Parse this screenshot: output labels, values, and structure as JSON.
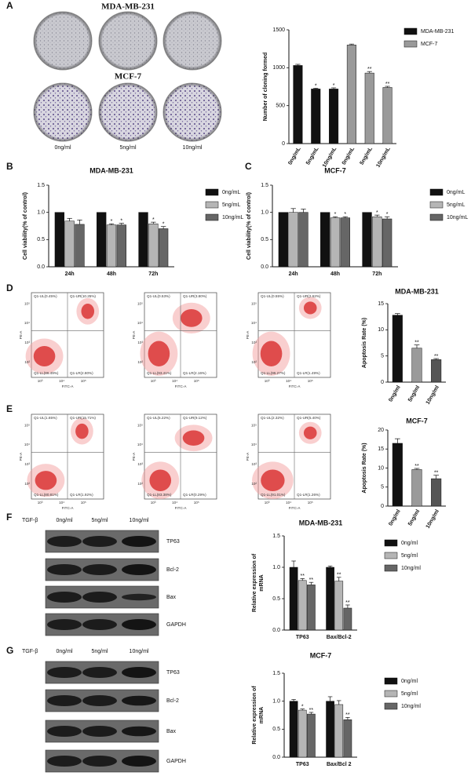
{
  "panels": [
    "A",
    "B",
    "C",
    "D",
    "E",
    "F",
    "G"
  ],
  "colony": {
    "row_labels": [
      "MDA-MB-231",
      "MCF-7"
    ],
    "dose_labels": [
      "0ng/ml",
      "5ng/ml",
      "10ng/ml"
    ]
  },
  "flow": {
    "x_label": "FITC-A",
    "y_label": "PE-A",
    "x_ticks": [
      "10³",
      "10⁴",
      "10⁵"
    ],
    "y_ticks": [
      "10²",
      "10³",
      "10⁴",
      "10⁵"
    ],
    "rows": [
      [
        [
          "Q1-UL(0.45%)",
          "Q1-UR(10.25%)",
          "Q1-LL(86.49%)",
          "Q1-LR(2.80%)"
        ],
        [
          "Q1-UL(0.53%)",
          "Q1-UR(3.80%)",
          "Q1-LL(93.41%)",
          "Q1-LR(2.16%)"
        ],
        [
          "Q1-UL(0.55%)",
          "Q1-UR(2.62%)",
          "Q1-LL(95.27%)",
          "Q1-LR(1.49%)"
        ]
      ],
      [
        [
          "Q1-UL(1.65%)",
          "Q1-UR(15.71%)",
          "Q1-LL(80.81%)",
          "Q1-LR(1.92%)"
        ],
        [
          "Q1-UL(5.22%)",
          "Q1-UR(9.12%)",
          "Q1-LL(83.38%)",
          "Q1-LR(0.29%)"
        ],
        [
          "Q1-UL(2.32%)",
          "Q1-UR(5.40%)",
          "Q1-LL(91.01%)",
          "Q1-LR(1.26%)"
        ]
      ]
    ]
  },
  "western": [
    {
      "treatment": "TGF-β",
      "doses": [
        "0ng/ml",
        "5ng/ml",
        "10ng/ml"
      ],
      "bands": [
        "TP63",
        "Bcl-2",
        "Bax",
        "GAPDH"
      ]
    },
    {
      "treatment": "TGF-β",
      "doses": [
        "0ng/ml",
        "5ng/ml",
        "10ng/ml"
      ],
      "bands": [
        "TP63",
        "Bcl-2",
        "Bax",
        "GAPDH"
      ]
    }
  ],
  "chart_data": [
    {
      "type": "bar",
      "ylabel": "Number of cloning formed",
      "categories": [
        "0ng/mL",
        "5ng/mL",
        "10ng/mL",
        "0ng/mL",
        "5ng/mL",
        "10ng/mL"
      ],
      "series": [
        {
          "name": "MDA-MB-231",
          "color": "#111111",
          "values": [
            1030,
            720,
            720,
            null,
            null,
            null
          ],
          "errors": [
            15,
            10,
            15,
            null,
            null,
            null
          ],
          "sig": [
            null,
            "*",
            "*",
            null,
            null,
            null
          ]
        },
        {
          "name": "MCF-7",
          "color": "#9a9a9a",
          "values": [
            null,
            null,
            null,
            1300,
            930,
            740
          ],
          "errors": [
            null,
            null,
            null,
            12,
            20,
            15
          ],
          "sig": [
            null,
            null,
            null,
            null,
            "**",
            "**"
          ]
        }
      ],
      "ylim": [
        0,
        1500
      ],
      "yticks": [
        0,
        500,
        1000,
        1500
      ]
    },
    {
      "type": "bar",
      "title": "MDA-MB-231",
      "ylabel": "Cell viability(% of control)",
      "categories": [
        "24h",
        "48h",
        "72h"
      ],
      "series": [
        {
          "name": "0ng/mL",
          "color": "#111111",
          "values": [
            1.0,
            1.0,
            1.0
          ]
        },
        {
          "name": "5ng/mL",
          "color": "#b5b5b5",
          "values": [
            0.84,
            0.77,
            0.79
          ],
          "errors": [
            0.05,
            0.02,
            0.03
          ],
          "sig": [
            null,
            "*",
            "*"
          ]
        },
        {
          "name": "10ng/mL",
          "color": "#666666",
          "values": [
            0.78,
            0.77,
            0.7
          ],
          "errors": [
            0.08,
            0.03,
            0.04
          ],
          "sig": [
            null,
            "*",
            "*"
          ]
        }
      ],
      "ylim": [
        0,
        1.5
      ],
      "yticks": [
        {
          "value": 0,
          "label": "0.0"
        },
        0.5,
        {
          "value": 1,
          "label": "1.0"
        },
        1.5
      ]
    },
    {
      "type": "bar",
      "title": "MCF-7",
      "ylabel": "Cell viability(% of control)",
      "categories": [
        "24h",
        "48h",
        "72h"
      ],
      "series": [
        {
          "name": "0ng/mL",
          "color": "#111111",
          "values": [
            1.0,
            1.0,
            1.0
          ]
        },
        {
          "name": "5ng/mL",
          "color": "#b5b5b5",
          "values": [
            1.0,
            0.9,
            0.92
          ],
          "errors": [
            0.07,
            0.02,
            0.03
          ],
          "sig": [
            null,
            "*",
            "*"
          ]
        },
        {
          "name": "10ng/mL",
          "color": "#666666",
          "values": [
            1.0,
            0.9,
            0.88
          ],
          "errors": [
            0.06,
            0.02,
            0.04
          ],
          "sig": [
            null,
            "*",
            "*"
          ]
        }
      ],
      "ylim": [
        0,
        1.5
      ],
      "yticks": [
        {
          "value": 0,
          "label": "0.0"
        },
        0.5,
        {
          "value": 1,
          "label": "1.0"
        },
        1.5
      ]
    },
    {
      "type": "bar",
      "title": "MDA-MB-231",
      "ylabel": "Apoptosis Rate (%)",
      "categories": [
        "0ng/ml",
        "5ng/ml",
        "10ng/ml"
      ],
      "values": [
        12.8,
        6.5,
        4.3
      ],
      "errors": [
        0.3,
        0.6,
        0.2
      ],
      "sig": [
        null,
        "**",
        "**"
      ],
      "colors": [
        "#111111",
        "#9a9a9a",
        "#555555"
      ],
      "ylim": [
        0,
        15
      ],
      "yticks": [
        0,
        5,
        10,
        15
      ]
    },
    {
      "type": "bar",
      "title": "MCF-7",
      "ylabel": "Apoptosis Rate (%)",
      "categories": [
        "0ng/ml",
        "5ng/ml",
        "10ng/ml"
      ],
      "values": [
        16.5,
        9.6,
        7.2
      ],
      "errors": [
        1.2,
        0.3,
        0.9
      ],
      "sig": [
        null,
        "**",
        "**"
      ],
      "colors": [
        "#111111",
        "#9a9a9a",
        "#555555"
      ],
      "ylim": [
        0,
        20
      ],
      "yticks": [
        0,
        5,
        10,
        15,
        20
      ]
    },
    {
      "type": "bar",
      "title": "MDA-MB-231",
      "ylabel": [
        "Relative expression of",
        "mRNA"
      ],
      "categories": [
        "TP63",
        "Bax/Bcl-2"
      ],
      "series": [
        {
          "name": "0ng/ml",
          "color": "#111111",
          "values": [
            1.0,
            1.0
          ],
          "errors": [
            0.1,
            0.02
          ]
        },
        {
          "name": "5ng/ml",
          "color": "#b5b5b5",
          "values": [
            0.79,
            0.78
          ],
          "errors": [
            0.03,
            0.06
          ],
          "sig": [
            "**",
            "**"
          ]
        },
        {
          "name": "10ng/ml",
          "color": "#666666",
          "values": [
            0.72,
            0.35
          ],
          "errors": [
            0.04,
            0.05
          ],
          "sig": [
            "**",
            "**"
          ]
        }
      ],
      "ylim": [
        0,
        1.5
      ],
      "yticks": [
        {
          "value": 0,
          "label": "0.0"
        },
        0.5,
        {
          "value": 1,
          "label": "1.0"
        },
        1.5
      ]
    },
    {
      "type": "bar",
      "title": "MCF-7",
      "ylabel": [
        "Relative expression of",
        "mRNA"
      ],
      "categories": [
        "TP63",
        "Bax/Bcl 2"
      ],
      "series": [
        {
          "name": "0ng/ml",
          "color": "#111111",
          "values": [
            1.0,
            1.0
          ],
          "errors": [
            0.03,
            0.08
          ]
        },
        {
          "name": "5ng/ml",
          "color": "#b5b5b5",
          "values": [
            0.84,
            0.94
          ],
          "errors": [
            0.02,
            0.07
          ],
          "sig": [
            "*",
            null
          ]
        },
        {
          "name": "10ng/ml",
          "color": "#666666",
          "values": [
            0.77,
            0.67
          ],
          "errors": [
            0.03,
            0.04
          ],
          "sig": [
            "**",
            "**"
          ]
        }
      ],
      "ylim": [
        0,
        1.5
      ],
      "yticks": [
        {
          "value": 0,
          "label": "0.0"
        },
        0.5,
        {
          "value": 1,
          "label": "1.0"
        },
        1.5
      ]
    }
  ]
}
